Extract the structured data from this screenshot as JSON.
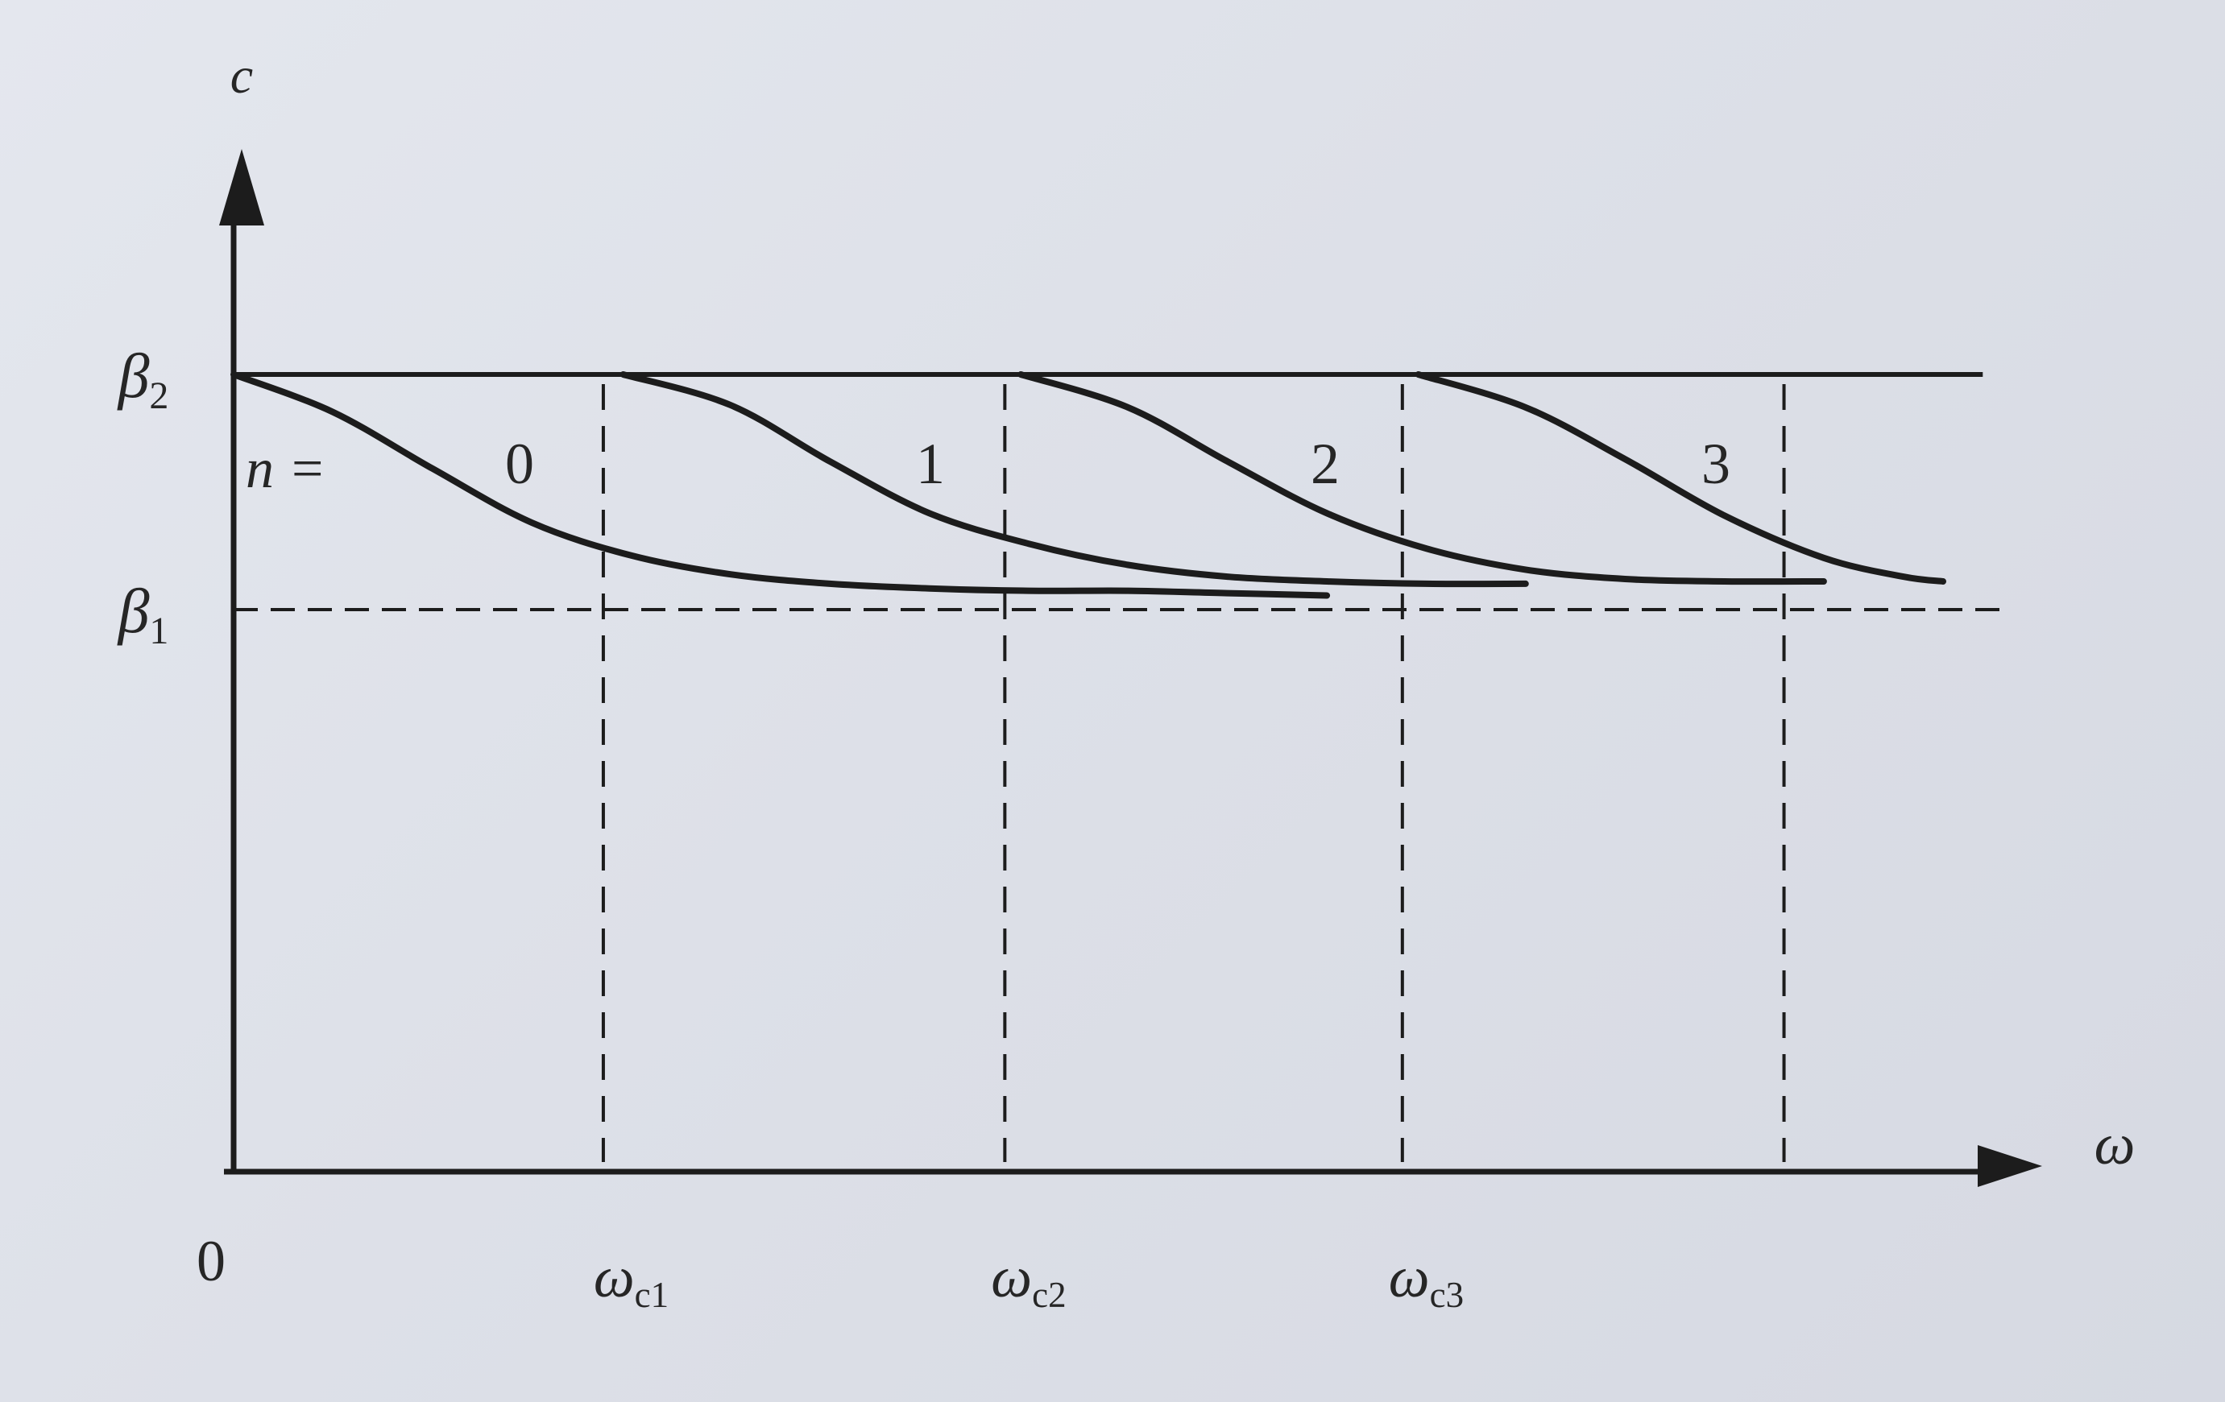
{
  "chart_data": {
    "type": "line",
    "title": "",
    "xlabel": "ω",
    "ylabel": "c",
    "origin_label": "0",
    "y_ticks": [
      {
        "base": "β",
        "sub": "2",
        "value": 1.0
      },
      {
        "base": "β",
        "sub": "1",
        "value": 0.0
      }
    ],
    "x_ticks": [
      {
        "base": "ω",
        "sub": "c1",
        "value": 1
      },
      {
        "base": "ω",
        "sub": "c2",
        "value": 2
      },
      {
        "base": "ω",
        "sub": "c3",
        "value": 3
      }
    ],
    "ylim": [
      -2.4,
      1.3
    ],
    "xlim": [
      0,
      4.6
    ],
    "mode_prefix": "n =",
    "reference_lines": [
      {
        "orientation": "horizontal",
        "y": 1.0,
        "style": "solid",
        "x_end": 4.4
      },
      {
        "orientation": "horizontal",
        "y": 0.0,
        "style": "dashed",
        "x_end": 4.45
      },
      {
        "orientation": "vertical",
        "x": 0.93,
        "style": "dashed"
      },
      {
        "orientation": "vertical",
        "x": 1.94,
        "style": "dashed"
      },
      {
        "orientation": "vertical",
        "x": 2.94,
        "style": "dashed"
      },
      {
        "orientation": "vertical",
        "x": 3.9,
        "style": "dashed"
      }
    ],
    "series": [
      {
        "name": "0",
        "x": [
          0,
          0.25,
          0.5,
          0.75,
          1.0,
          1.25,
          1.5,
          1.75,
          2.0,
          2.25,
          2.5,
          2.75
        ],
        "y": [
          1.0,
          0.84,
          0.6,
          0.37,
          0.23,
          0.15,
          0.11,
          0.09,
          0.08,
          0.08,
          0.07,
          0.06
        ]
      },
      {
        "name": "1",
        "x": [
          0.98,
          1.25,
          1.5,
          1.75,
          2.0,
          2.25,
          2.5,
          2.75,
          3.0,
          3.25
        ],
        "y": [
          1.0,
          0.87,
          0.63,
          0.41,
          0.28,
          0.19,
          0.14,
          0.12,
          0.11,
          0.11
        ]
      },
      {
        "name": "2",
        "x": [
          1.98,
          2.25,
          2.5,
          2.75,
          3.0,
          3.25,
          3.5,
          3.75,
          4.0
        ],
        "y": [
          1.0,
          0.86,
          0.63,
          0.41,
          0.26,
          0.17,
          0.13,
          0.12,
          0.12
        ]
      },
      {
        "name": "3",
        "x": [
          2.98,
          3.25,
          3.5,
          3.75,
          4.0,
          4.2,
          4.3
        ],
        "y": [
          1.0,
          0.86,
          0.64,
          0.4,
          0.22,
          0.14,
          0.12
        ]
      }
    ]
  }
}
